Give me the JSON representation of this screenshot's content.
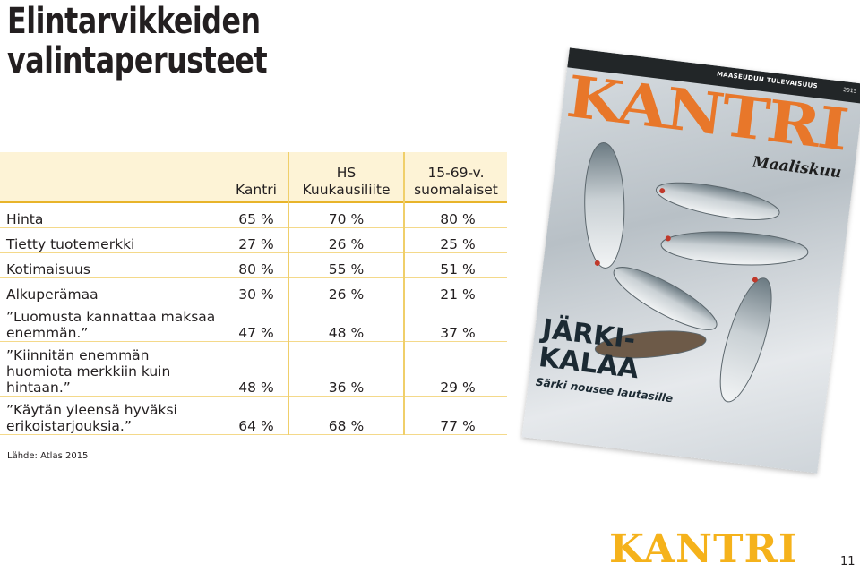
{
  "slide": {
    "title_line1": "Elintarvikkeiden",
    "title_line2": "valintaperusteet",
    "source": "Lähde: Atlas 2015",
    "page_number": "11",
    "brand_logo": "KANTRI"
  },
  "table": {
    "headers": [
      {
        "line1": "Kantri",
        "line2": ""
      },
      {
        "line1": "HS",
        "line2": "Kuukausiliite"
      },
      {
        "line1": "15-69-v.",
        "line2": "suomalaiset"
      }
    ],
    "rows": [
      {
        "label": "Hinta",
        "values": [
          "65 %",
          "70 %",
          "80 %"
        ]
      },
      {
        "label": "Tietty tuotemerkki",
        "values": [
          "27 %",
          "26 %",
          "25 %"
        ]
      },
      {
        "label": "Kotimaisuus",
        "values": [
          "80 %",
          "55 %",
          "51 %"
        ]
      },
      {
        "label": "Alkuperämaa",
        "values": [
          "30 %",
          "26 %",
          "21 %"
        ]
      },
      {
        "label": "”Luomusta kannattaa maksaa enemmän.”",
        "values": [
          "47 %",
          "48 %",
          "37 %"
        ]
      },
      {
        "label": "”Kiinnitän enemmän huomiota merkkiin kuin hintaan.”",
        "values": [
          "48 %",
          "36 %",
          "29 %"
        ]
      },
      {
        "label": "”Käytän yleensä hyväksi erikoistarjouksia.”",
        "values": [
          "64 %",
          "68 %",
          "77 %"
        ]
      }
    ]
  },
  "cover": {
    "top_tag": "MAASEUDUN TULEVAISUUS",
    "year": "2015",
    "logo": "KANTRI",
    "month": "Maaliskuu",
    "headline_line1": "JÄRKI-",
    "headline_line2": "KALAA",
    "subheadline": "Särki nousee lautasille"
  },
  "colors": {
    "header_bg": "#fdf3d6",
    "rule": "#e8b42a",
    "brand": "#f5b21b",
    "cover_logo": "#e8772a"
  }
}
